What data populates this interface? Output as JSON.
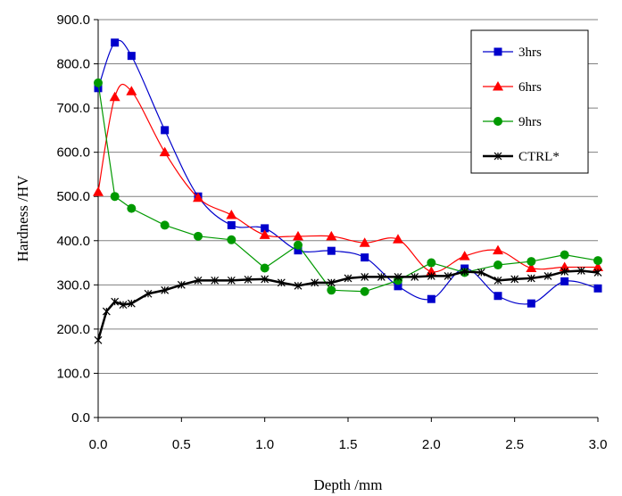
{
  "chart_data": {
    "type": "line",
    "title": "",
    "xlabel": "Depth /mm",
    "ylabel": "Hardness /HV",
    "xlim": [
      0,
      3
    ],
    "ylim": [
      0,
      900
    ],
    "x_ticks": [
      "0.0",
      "0.5",
      "1.0",
      "1.5",
      "2.0",
      "2.5",
      "3.0"
    ],
    "y_ticks": [
      "0.0",
      "100.0",
      "200.0",
      "300.0",
      "400.0",
      "500.0",
      "600.0",
      "700.0",
      "800.0",
      "900.0"
    ],
    "grid": "horizontal",
    "legend_position": "top-right",
    "series": [
      {
        "name": "3hrs",
        "color": "#0000cc",
        "marker": "square",
        "smooth": true,
        "points": [
          [
            0.0,
            745
          ],
          [
            0.1,
            848
          ],
          [
            0.2,
            818
          ],
          [
            0.4,
            650
          ],
          [
            0.6,
            500
          ],
          [
            0.8,
            435
          ],
          [
            1.0,
            428
          ],
          [
            1.2,
            378
          ],
          [
            1.4,
            377
          ],
          [
            1.6,
            362
          ],
          [
            1.8,
            297
          ],
          [
            2.0,
            268
          ],
          [
            2.2,
            337
          ],
          [
            2.4,
            275
          ],
          [
            2.6,
            258
          ],
          [
            2.8,
            308
          ],
          [
            3.0,
            292
          ]
        ]
      },
      {
        "name": "6hrs",
        "color": "#ff0000",
        "marker": "triangle",
        "smooth": true,
        "points": [
          [
            0.0,
            510
          ],
          [
            0.1,
            725
          ],
          [
            0.2,
            738
          ],
          [
            0.4,
            600
          ],
          [
            0.6,
            497
          ],
          [
            0.8,
            458
          ],
          [
            1.0,
            413
          ],
          [
            1.2,
            410
          ],
          [
            1.4,
            410
          ],
          [
            1.6,
            395
          ],
          [
            1.8,
            403
          ],
          [
            2.0,
            330
          ],
          [
            2.2,
            365
          ],
          [
            2.4,
            378
          ],
          [
            2.6,
            338
          ],
          [
            2.8,
            340
          ],
          [
            3.0,
            340
          ]
        ]
      },
      {
        "name": "9hrs",
        "color": "#009900",
        "marker": "circle",
        "smooth": false,
        "points": [
          [
            0.0,
            757
          ],
          [
            0.1,
            500
          ],
          [
            0.2,
            473
          ],
          [
            0.4,
            435
          ],
          [
            0.6,
            410
          ],
          [
            0.8,
            402
          ],
          [
            1.0,
            338
          ],
          [
            1.2,
            390
          ],
          [
            1.4,
            288
          ],
          [
            1.6,
            285
          ],
          [
            1.8,
            310
          ],
          [
            2.0,
            350
          ],
          [
            2.2,
            328
          ],
          [
            2.4,
            345
          ],
          [
            2.6,
            353
          ],
          [
            2.8,
            368
          ],
          [
            3.0,
            355
          ]
        ]
      },
      {
        "name": "CTRL*",
        "color": "#000000",
        "marker": "star",
        "smooth": false,
        "points": [
          [
            0.0,
            175
          ],
          [
            0.05,
            240
          ],
          [
            0.1,
            262
          ],
          [
            0.15,
            255
          ],
          [
            0.2,
            258
          ],
          [
            0.3,
            280
          ],
          [
            0.4,
            288
          ],
          [
            0.5,
            300
          ],
          [
            0.6,
            310
          ],
          [
            0.7,
            310
          ],
          [
            0.8,
            310
          ],
          [
            0.9,
            312
          ],
          [
            1.0,
            313
          ],
          [
            1.1,
            305
          ],
          [
            1.2,
            298
          ],
          [
            1.3,
            305
          ],
          [
            1.4,
            305
          ],
          [
            1.5,
            315
          ],
          [
            1.6,
            318
          ],
          [
            1.7,
            318
          ],
          [
            1.8,
            318
          ],
          [
            1.9,
            318
          ],
          [
            2.0,
            320
          ],
          [
            2.1,
            320
          ],
          [
            2.2,
            330
          ],
          [
            2.3,
            328
          ],
          [
            2.4,
            310
          ],
          [
            2.5,
            313
          ],
          [
            2.6,
            315
          ],
          [
            2.7,
            320
          ],
          [
            2.8,
            330
          ],
          [
            2.9,
            332
          ],
          [
            3.0,
            328
          ]
        ]
      }
    ]
  }
}
